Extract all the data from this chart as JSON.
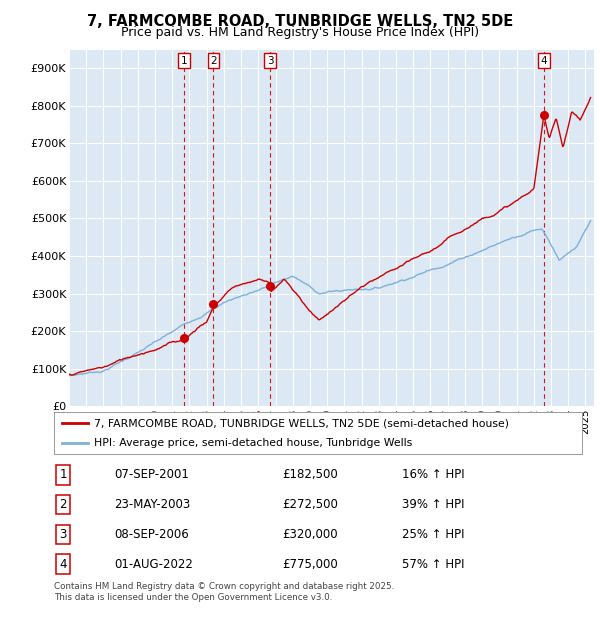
{
  "title": "7, FARMCOMBE ROAD, TUNBRIDGE WELLS, TN2 5DE",
  "subtitle": "Price paid vs. HM Land Registry's House Price Index (HPI)",
  "ylabel_ticks": [
    "£0",
    "£100K",
    "£200K",
    "£300K",
    "£400K",
    "£500K",
    "£600K",
    "£700K",
    "£800K",
    "£900K"
  ],
  "ytick_vals": [
    0,
    100000,
    200000,
    300000,
    400000,
    500000,
    600000,
    700000,
    800000,
    900000
  ],
  "ylim": [
    0,
    950000
  ],
  "xlim_start": 1995.0,
  "xlim_end": 2025.5,
  "bg_color": "#dce9f5",
  "red_line_color": "#cc0000",
  "blue_line_color": "#7fb0d8",
  "grid_color": "#ffffff",
  "sale_dates": [
    2001.69,
    2003.39,
    2006.69,
    2022.58
  ],
  "sale_prices": [
    182500,
    272500,
    320000,
    775000
  ],
  "sale_labels": [
    "1",
    "2",
    "3",
    "4"
  ],
  "legend_label_red": "7, FARMCOMBE ROAD, TUNBRIDGE WELLS, TN2 5DE (semi-detached house)",
  "legend_label_blue": "HPI: Average price, semi-detached house, Tunbridge Wells",
  "footer": "Contains HM Land Registry data © Crown copyright and database right 2025.\nThis data is licensed under the Open Government Licence v3.0.",
  "table_entries": [
    {
      "num": "1",
      "date": "07-SEP-2001",
      "price": "£182,500",
      "pct": "16% ↑ HPI"
    },
    {
      "num": "2",
      "date": "23-MAY-2003",
      "price": "£272,500",
      "pct": "39% ↑ HPI"
    },
    {
      "num": "3",
      "date": "08-SEP-2006",
      "price": "£320,000",
      "pct": "25% ↑ HPI"
    },
    {
      "num": "4",
      "date": "01-AUG-2022",
      "price": "£775,000",
      "pct": "57% ↑ HPI"
    }
  ]
}
